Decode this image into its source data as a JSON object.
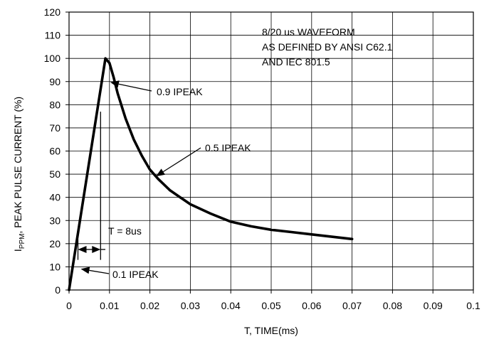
{
  "chart_data": {
    "type": "line",
    "title": "",
    "xlabel": "T, TIME(ms)",
    "ylabel_parts": [
      "I",
      "PPM",
      ", PEAK PULSE CURRENT (%)"
    ],
    "xlim": [
      0,
      0.1
    ],
    "ylim": [
      0,
      120
    ],
    "x_ticks": [
      0,
      0.01,
      0.02,
      0.03,
      0.04,
      0.05,
      0.06,
      0.07,
      0.08,
      0.09,
      0.1
    ],
    "x_tick_labels": [
      "0",
      "0.01",
      "0.02",
      "0.03",
      "0.04",
      "0.05",
      "0.06",
      "0.07",
      "0.08",
      "0.09",
      "0.1"
    ],
    "y_ticks": [
      0,
      10,
      20,
      30,
      40,
      50,
      60,
      70,
      80,
      90,
      100,
      110,
      120
    ],
    "y_tick_labels": [
      "0",
      "10",
      "20",
      "30",
      "40",
      "50",
      "60",
      "70",
      "80",
      "90",
      "100",
      "110",
      "120"
    ],
    "grid": true,
    "series": [
      {
        "x": [
          0,
          0.009,
          0.01,
          0.011,
          0.012,
          0.014,
          0.016,
          0.018,
          0.02,
          0.022,
          0.025,
          0.03,
          0.035,
          0.04,
          0.045,
          0.05,
          0.055,
          0.06,
          0.065,
          0.07
        ],
        "y": [
          0,
          100,
          98,
          92,
          85,
          74,
          65,
          58,
          52,
          48,
          43,
          37,
          33,
          29.5,
          27.5,
          26,
          25,
          24,
          23,
          22
        ]
      }
    ],
    "annotations": {
      "waveform_line1": "8/20 us WAVEFORM",
      "waveform_line2": "AS DEFINED BY ANSI C62.1",
      "waveform_line3": "AND IEC 801.5",
      "label_09": "0.9 IPEAK",
      "label_05": "0.5 IPEAK",
      "label_01": "0.1 IPEAK",
      "label_t": "T = 8us"
    }
  }
}
